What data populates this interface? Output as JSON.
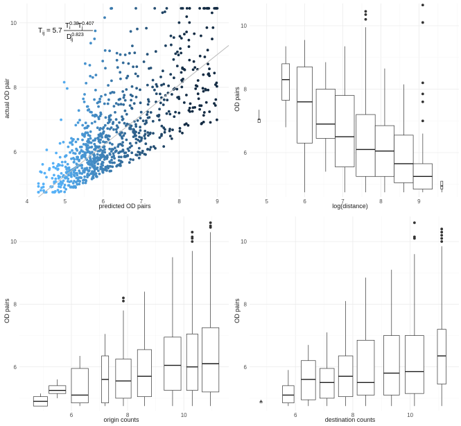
{
  "chart_data": [
    {
      "id": "scatter",
      "type": "scatter",
      "xlabel": "predicted OD pairs",
      "ylabel": "actual OD pair",
      "xlim": [
        3.8,
        9.3
      ],
      "ylim": [
        4.6,
        10.6
      ],
      "xticks": [
        4,
        5,
        6,
        7,
        8,
        9
      ],
      "yticks": [
        6,
        8,
        10
      ],
      "reference_line": {
        "x": [
          4.3,
          9.3
        ],
        "y": [
          4.6,
          9.3
        ]
      },
      "point_count": 900,
      "point_color_low": "#56B1F7",
      "point_color_high": "#132B43",
      "annotation": {
        "lhs": "T",
        "lhs_sub": "ij",
        "equals": " = 5.7",
        "num1": "T",
        "num1_sub": "i",
        "num1_sup": "0.38",
        "num2": "T",
        "num2_sub": "j",
        "num2_sup": "0.407",
        "den": "D",
        "den_sub": "ij",
        "den_sup": "0.823"
      }
    },
    {
      "id": "distance",
      "type": "box",
      "xlabel": "log(distance)",
      "ylabel": "OD pairs",
      "xlim": [
        4.55,
        10.05
      ],
      "ylim": [
        4.6,
        10.7
      ],
      "xticks": [
        5,
        6,
        7,
        8,
        9
      ],
      "yticks": [
        6,
        8,
        10
      ],
      "boxes": [
        {
          "x": 4.8,
          "min": 6.95,
          "q1": 6.95,
          "med": 7.05,
          "q3": 7.05,
          "max": 7.35,
          "w": 0.06,
          "outliers": []
        },
        {
          "x": 5.5,
          "min": 6.8,
          "q1": 7.65,
          "med": 8.3,
          "q3": 8.8,
          "max": 9.35,
          "w": 0.2,
          "outliers": []
        },
        {
          "x": 6.0,
          "min": 4.75,
          "q1": 6.3,
          "med": 7.6,
          "q3": 8.7,
          "max": 9.55,
          "w": 0.4,
          "outliers": []
        },
        {
          "x": 6.55,
          "min": 5.4,
          "q1": 6.45,
          "med": 6.9,
          "q3": 8.0,
          "max": 8.85,
          "w": 0.5,
          "outliers": []
        },
        {
          "x": 7.05,
          "min": 4.75,
          "q1": 5.55,
          "med": 6.5,
          "q3": 7.8,
          "max": 9.35,
          "w": 0.5,
          "outliers": []
        },
        {
          "x": 7.6,
          "min": 4.75,
          "q1": 5.25,
          "med": 6.1,
          "q3": 7.2,
          "max": 9.95,
          "w": 0.5,
          "outliers": [
            10.2,
            10.35,
            10.45
          ]
        },
        {
          "x": 8.1,
          "min": 4.75,
          "q1": 5.25,
          "med": 6.05,
          "q3": 6.85,
          "max": 8.65,
          "w": 0.5,
          "outliers": []
        },
        {
          "x": 8.6,
          "min": 4.75,
          "q1": 5.05,
          "med": 5.65,
          "q3": 6.55,
          "max": 8.15,
          "w": 0.5,
          "outliers": []
        },
        {
          "x": 9.1,
          "min": 4.75,
          "q1": 4.85,
          "med": 5.25,
          "q3": 5.65,
          "max": 6.6,
          "w": 0.5,
          "outliers": [
            7.0,
            7.6,
            7.85,
            8.2,
            10.1,
            10.65
          ]
        },
        {
          "x": 9.6,
          "min": 4.75,
          "q1": 4.85,
          "med": 4.95,
          "q3": 5.1,
          "max": 5.1,
          "w": 0.05,
          "outliers": []
        }
      ]
    },
    {
      "id": "origin",
      "type": "box",
      "xlabel": "origin counts",
      "ylabel": "OD pairs",
      "xlim": [
        4.15,
        11.6
      ],
      "ylim": [
        4.6,
        10.8
      ],
      "xticks": [
        6,
        8,
        10
      ],
      "yticks": [
        6,
        8,
        10
      ],
      "boxes": [
        {
          "x": 4.9,
          "min": 4.75,
          "q1": 4.75,
          "med": 4.9,
          "q3": 5.05,
          "max": 5.15,
          "w": 0.5,
          "outliers": []
        },
        {
          "x": 5.5,
          "min": 5.0,
          "q1": 5.15,
          "med": 5.25,
          "q3": 5.4,
          "max": 5.6,
          "w": 0.6,
          "outliers": []
        },
        {
          "x": 6.3,
          "min": 4.75,
          "q1": 4.85,
          "med": 5.1,
          "q3": 5.95,
          "max": 6.35,
          "w": 0.6,
          "outliers": []
        },
        {
          "x": 7.2,
          "min": 4.75,
          "q1": 4.85,
          "med": 5.6,
          "q3": 6.35,
          "max": 7.05,
          "w": 0.25,
          "outliers": []
        },
        {
          "x": 7.85,
          "min": 4.75,
          "q1": 5.0,
          "med": 5.55,
          "q3": 6.25,
          "max": 7.8,
          "w": 0.55,
          "outliers": [
            8.1,
            8.2
          ]
        },
        {
          "x": 8.6,
          "min": 4.75,
          "q1": 5.05,
          "med": 5.7,
          "q3": 6.55,
          "max": 8.4,
          "w": 0.5,
          "outliers": []
        },
        {
          "x": 9.6,
          "min": 4.75,
          "q1": 5.25,
          "med": 6.05,
          "q3": 6.95,
          "max": 9.5,
          "w": 0.6,
          "outliers": []
        },
        {
          "x": 10.3,
          "min": 4.75,
          "q1": 5.25,
          "med": 6.0,
          "q3": 7.05,
          "max": 9.7,
          "w": 0.4,
          "outliers": [
            10.0,
            10.1,
            10.15,
            10.3
          ]
        },
        {
          "x": 10.95,
          "min": 4.75,
          "q1": 5.2,
          "med": 6.1,
          "q3": 7.25,
          "max": 10.3,
          "w": 0.6,
          "outliers": [
            10.45,
            10.5,
            10.6
          ]
        }
      ]
    },
    {
      "id": "destination",
      "type": "box",
      "xlabel": "destination counts",
      "ylabel": "OD pairs",
      "xlim": [
        4.4,
        11.7
      ],
      "ylim": [
        4.6,
        10.8
      ],
      "xticks": [
        6,
        8,
        10
      ],
      "yticks": [
        6,
        8,
        10
      ],
      "boxes": [
        {
          "x": 4.8,
          "min": 4.85,
          "q1": 4.85,
          "med": 4.9,
          "q3": 4.9,
          "max": 4.95,
          "w": 0.05,
          "outliers": []
        },
        {
          "x": 5.75,
          "min": 4.75,
          "q1": 4.85,
          "med": 5.1,
          "q3": 5.4,
          "max": 5.9,
          "w": 0.4,
          "outliers": []
        },
        {
          "x": 6.45,
          "min": 4.75,
          "q1": 4.95,
          "med": 5.6,
          "q3": 6.2,
          "max": 6.7,
          "w": 0.5,
          "outliers": []
        },
        {
          "x": 7.1,
          "min": 4.75,
          "q1": 5.0,
          "med": 5.5,
          "q3": 5.95,
          "max": 7.1,
          "w": 0.5,
          "outliers": []
        },
        {
          "x": 7.75,
          "min": 4.75,
          "q1": 5.05,
          "med": 5.7,
          "q3": 6.35,
          "max": 8.1,
          "w": 0.5,
          "outliers": []
        },
        {
          "x": 8.45,
          "min": 4.75,
          "q1": 5.1,
          "med": 5.5,
          "q3": 6.85,
          "max": 8.85,
          "w": 0.6,
          "outliers": []
        },
        {
          "x": 9.35,
          "min": 4.75,
          "q1": 5.1,
          "med": 5.8,
          "q3": 7.0,
          "max": 9.1,
          "w": 0.55,
          "outliers": []
        },
        {
          "x": 10.15,
          "min": 4.75,
          "q1": 5.15,
          "med": 5.85,
          "q3": 7.0,
          "max": 9.6,
          "w": 0.65,
          "outliers": [
            10.1,
            10.15,
            10.6
          ]
        },
        {
          "x": 11.1,
          "min": 4.75,
          "q1": 5.45,
          "med": 6.35,
          "q3": 7.2,
          "max": 9.85,
          "w": 0.3,
          "outliers": [
            10.0,
            10.1,
            10.2,
            10.3,
            10.4
          ]
        }
      ]
    }
  ]
}
